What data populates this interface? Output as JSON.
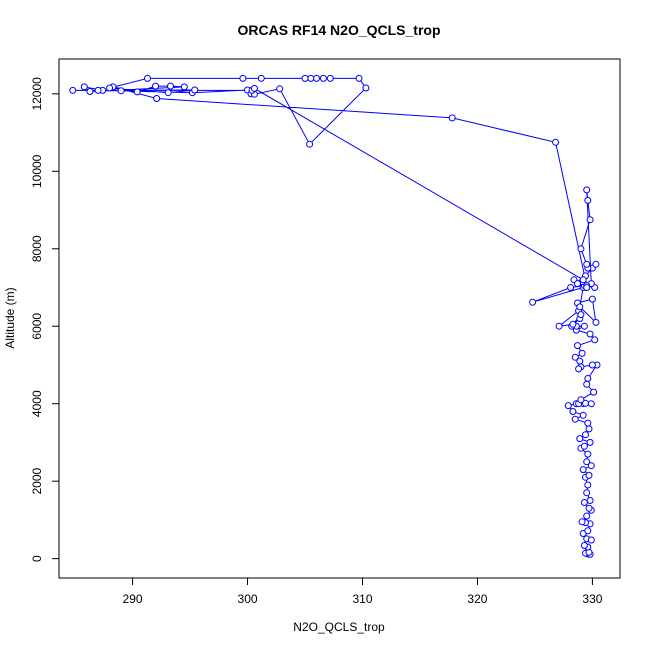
{
  "chart_data": {
    "type": "line",
    "title": "ORCAS RF14 N2O_QCLS_trop",
    "xlabel": "N2O_QCLS_trop",
    "ylabel": "Altitude (m)",
    "xlim": [
      283.6,
      332.4
    ],
    "ylim": [
      -500,
      12900
    ],
    "xticks": [
      290,
      300,
      310,
      320,
      330
    ],
    "yticks": [
      0,
      2000,
      4000,
      6000,
      8000,
      10000,
      12000
    ],
    "series": [
      {
        "color": "#0000ff",
        "marker": "open-circle",
        "x": [
          329.6,
          329.4,
          329.8,
          329.7,
          329.6,
          329.3,
          329.5,
          329.9,
          329.2,
          329.6,
          329.8,
          329.4,
          329.1,
          329.5,
          329.9,
          329.7,
          329.3,
          329.8,
          329.5,
          329.6,
          329.4,
          329.7,
          329.2,
          329.9,
          329.5,
          329.6,
          329.0,
          329.3,
          329.8,
          328.9,
          329.4,
          329.7,
          329.6,
          328.5,
          329.2,
          328.3,
          327.9,
          328.6,
          329.2,
          328.8,
          329.4,
          329.9,
          329.0,
          330.1,
          329.5,
          329.6,
          330.4,
          330.0,
          329.0,
          328.8,
          328.9,
          328.5,
          329.1,
          328.7,
          330.2,
          329.8,
          328.6,
          329.3,
          328.6,
          328.2,
          328.9,
          328.8,
          327.1,
          328.3,
          329.0,
          328.7,
          330.0,
          330.3,
          328.9,
          329.2,
          324.8,
          328.1,
          329.3,
          330.2,
          328.4,
          329.1,
          328.7,
          329.4,
          330.0,
          330.3,
          329.6,
          329.5,
          329.0,
          329.8,
          329.6,
          329.5,
          329.9,
          329.5,
          326.8,
          317.8,
          292.1,
          288.3,
          290.4,
          292.0,
          293.3,
          294.5,
          286.3,
          285.8,
          287.4,
          284.8,
          289.0,
          295.2,
          300.0,
          300.3,
          300.6,
          302.8,
          305.4,
          310.3,
          309.7,
          307.2,
          306.6,
          306.0,
          305.5,
          305.0,
          301.2,
          299.6,
          291.3,
          288.0,
          293.1,
          295.4,
          287.0,
          300.4,
          300.6,
          329.2,
          329.5
        ],
        "y": [
          120,
          140,
          110,
          160,
          300,
          340,
          510,
          480,
          650,
          720,
          900,
          930,
          950,
          1100,
          1250,
          1300,
          1450,
          1500,
          1700,
          1900,
          2100,
          2150,
          2300,
          2400,
          2500,
          2700,
          2850,
          2900,
          3000,
          3100,
          3200,
          3350,
          3500,
          3600,
          3700,
          3800,
          3950,
          4000,
          4000,
          4000,
          4010,
          4000,
          4100,
          4300,
          4500,
          4650,
          5000,
          5000,
          4950,
          4900,
          5100,
          5200,
          5300,
          5500,
          5650,
          5800,
          5900,
          6000,
          6000,
          6000,
          6200,
          6400,
          6000,
          6050,
          6300,
          6600,
          6700,
          6100,
          6500,
          7000,
          6620,
          7000,
          7050,
          7000,
          7200,
          7150,
          7100,
          7300,
          7500,
          7600,
          7500,
          7600,
          8000,
          8750,
          9250,
          9520,
          7100,
          7050,
          10750,
          11380,
          11880,
          12180,
          12050,
          12200,
          12200,
          12180,
          12060,
          12180,
          12090,
          12090,
          12080,
          12030,
          12100,
          12000,
          11990,
          12130,
          10700,
          12150,
          12400,
          12400,
          12400,
          12400,
          12400,
          12400,
          12400,
          12400,
          12400,
          12150,
          12030,
          12100,
          12090,
          12090,
          12140,
          7200,
          7000
        ]
      }
    ]
  }
}
